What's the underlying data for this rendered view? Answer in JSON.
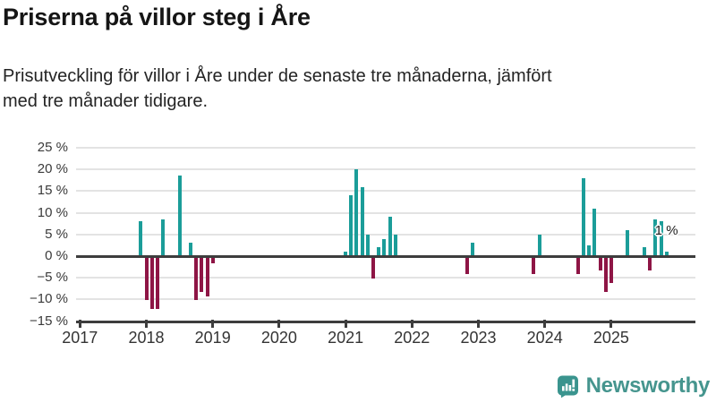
{
  "header": {
    "title": "Priserna på villor steg i Åre",
    "subtitle_lines": [
      "Prisutveckling för villor i Åre under de senaste tre månaderna, jämfört",
      "med tre månader tidigare."
    ]
  },
  "chart_data": {
    "type": "bar",
    "title": "Priserna på villor steg i Åre",
    "unit": "%",
    "grid": true,
    "legend": false,
    "y_axis": {
      "range": [
        -15,
        25
      ],
      "ticks": [
        25,
        20,
        15,
        10,
        5,
        0,
        -5,
        -10,
        -15
      ],
      "labels": [
        "25 %",
        "20 %",
        "15 %",
        "10 %",
        "5 %",
        "0 %",
        "−5 %",
        "−10 %",
        "−15 %"
      ]
    },
    "x_axis": {
      "years": [
        "2017",
        "2018",
        "2019",
        "2020",
        "2021",
        "2022",
        "2023",
        "2024",
        "2025"
      ]
    },
    "bars": [
      {
        "month": "2017-12",
        "value": 8
      },
      {
        "month": "2018-01",
        "value": -10
      },
      {
        "month": "2018-02",
        "value": -12
      },
      {
        "month": "2018-03",
        "value": -12
      },
      {
        "month": "2018-04",
        "value": 8.5
      },
      {
        "month": "2018-07",
        "value": 18.5
      },
      {
        "month": "2018-09",
        "value": 3
      },
      {
        "month": "2018-10",
        "value": -10
      },
      {
        "month": "2018-11",
        "value": -8
      },
      {
        "month": "2018-12",
        "value": -9
      },
      {
        "month": "2019-01",
        "value": -1.5
      },
      {
        "month": "2021-01",
        "value": 1
      },
      {
        "month": "2021-02",
        "value": 14
      },
      {
        "month": "2021-03",
        "value": 20
      },
      {
        "month": "2021-04",
        "value": 16
      },
      {
        "month": "2021-05",
        "value": 5
      },
      {
        "month": "2021-06",
        "value": -5
      },
      {
        "month": "2021-07",
        "value": 2
      },
      {
        "month": "2021-08",
        "value": 4
      },
      {
        "month": "2021-09",
        "value": 9
      },
      {
        "month": "2021-10",
        "value": 5
      },
      {
        "month": "2022-11",
        "value": -4
      },
      {
        "month": "2022-12",
        "value": 3
      },
      {
        "month": "2023-11",
        "value": -4
      },
      {
        "month": "2023-12",
        "value": 5
      },
      {
        "month": "2024-07",
        "value": -4
      },
      {
        "month": "2024-08",
        "value": 18
      },
      {
        "month": "2024-09",
        "value": 2.5
      },
      {
        "month": "2024-10",
        "value": 11
      },
      {
        "month": "2024-11",
        "value": -3
      },
      {
        "month": "2024-12",
        "value": -8
      },
      {
        "month": "2025-01",
        "value": -6
      },
      {
        "month": "2025-04",
        "value": 6
      },
      {
        "month": "2025-07",
        "value": 2
      },
      {
        "month": "2025-08",
        "value": -3
      },
      {
        "month": "2025-09",
        "value": 8.5
      },
      {
        "month": "2025-10",
        "value": 8
      },
      {
        "month": "2025-11",
        "value": 1
      }
    ],
    "annotation": {
      "text": "1 %",
      "month": "2025-11"
    },
    "colors": {
      "positive": "#1b9d99",
      "negative": "#8e1545",
      "axis": "#3d3d3d",
      "grid": "#e3e3e3",
      "brand": "#45958e"
    }
  },
  "footer": {
    "brand": "Newsworthy"
  }
}
